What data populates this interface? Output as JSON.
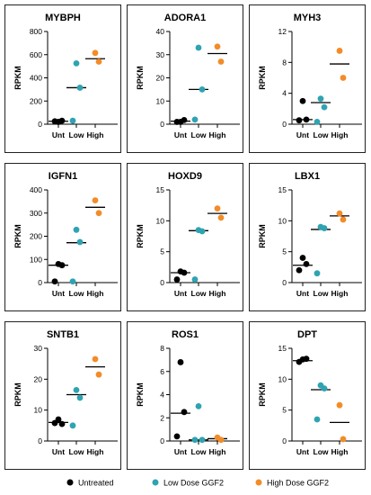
{
  "chart_data": [
    {
      "type": "scatter",
      "title": "MYBPH",
      "ylabel": "RPKM",
      "categories": [
        "Unt",
        "Low",
        "High"
      ],
      "ylim": [
        0,
        800
      ],
      "yticks": [
        0,
        200,
        400,
        600,
        800
      ],
      "series": [
        {
          "name": "Untreated",
          "color": "#000000",
          "values": [
            20,
            30,
            25
          ],
          "mean": 25
        },
        {
          "name": "Low Dose GGF2",
          "color": "#2fa3b1",
          "values": [
            525,
            315,
            30
          ],
          "mean": 315
        },
        {
          "name": "High Dose GGF2",
          "color": "#f28c28",
          "values": [
            615,
            540
          ],
          "mean": 565
        }
      ]
    },
    {
      "type": "scatter",
      "title": "ADORA1",
      "ylabel": "RPKM",
      "categories": [
        "Unt",
        "Low",
        "High"
      ],
      "ylim": [
        0,
        40
      ],
      "yticks": [
        0,
        10,
        20,
        30,
        40
      ],
      "series": [
        {
          "name": "Untreated",
          "color": "#000000",
          "values": [
            1,
            1.8,
            1
          ],
          "mean": 1.3
        },
        {
          "name": "Low Dose GGF2",
          "color": "#2fa3b1",
          "values": [
            33,
            15,
            2
          ],
          "mean": 15
        },
        {
          "name": "High Dose GGF2",
          "color": "#f28c28",
          "values": [
            33.5,
            27
          ],
          "mean": 30.5
        }
      ]
    },
    {
      "type": "scatter",
      "title": "MYH3",
      "ylabel": "RPKM",
      "categories": [
        "Unt",
        "Low",
        "High"
      ],
      "ylim": [
        0,
        12
      ],
      "yticks": [
        0,
        4,
        8,
        12
      ],
      "series": [
        {
          "name": "Untreated",
          "color": "#000000",
          "values": [
            3,
            0.6,
            0.5
          ],
          "mean": 0.6
        },
        {
          "name": "Low Dose GGF2",
          "color": "#2fa3b1",
          "values": [
            3.3,
            2.2,
            0.3
          ],
          "mean": 2.8
        },
        {
          "name": "High Dose GGF2",
          "color": "#f28c28",
          "values": [
            9.5,
            6
          ],
          "mean": 7.8
        }
      ]
    },
    {
      "type": "scatter",
      "title": "IGFN1",
      "ylabel": "RPKM",
      "categories": [
        "Unt",
        "Low",
        "High"
      ],
      "ylim": [
        0,
        400
      ],
      "yticks": [
        0,
        100,
        200,
        300,
        400
      ],
      "series": [
        {
          "name": "Untreated",
          "color": "#000000",
          "values": [
            80,
            75,
            5
          ],
          "mean": 75
        },
        {
          "name": "Low Dose GGF2",
          "color": "#2fa3b1",
          "values": [
            228,
            175,
            5
          ],
          "mean": 172
        },
        {
          "name": "High Dose GGF2",
          "color": "#f28c28",
          "values": [
            355,
            300
          ],
          "mean": 325
        }
      ]
    },
    {
      "type": "scatter",
      "title": "HOXD9",
      "ylabel": "RPKM",
      "categories": [
        "Unt",
        "Low",
        "High"
      ],
      "ylim": [
        0,
        15
      ],
      "yticks": [
        0,
        5,
        10,
        15
      ],
      "series": [
        {
          "name": "Untreated",
          "color": "#000000",
          "values": [
            1.8,
            1.6,
            0.5
          ],
          "mean": 1.6
        },
        {
          "name": "Low Dose GGF2",
          "color": "#2fa3b1",
          "values": [
            8.5,
            8.3,
            0.5
          ],
          "mean": 8.4
        },
        {
          "name": "High Dose GGF2",
          "color": "#f28c28",
          "values": [
            12,
            10.5
          ],
          "mean": 11.2
        }
      ]
    },
    {
      "type": "scatter",
      "title": "LBX1",
      "ylabel": "RPKM",
      "categories": [
        "Unt",
        "Low",
        "High"
      ],
      "ylim": [
        0,
        15
      ],
      "yticks": [
        0,
        5,
        10,
        15
      ],
      "series": [
        {
          "name": "Untreated",
          "color": "#000000",
          "values": [
            4,
            3,
            2
          ],
          "mean": 2.8
        },
        {
          "name": "Low Dose GGF2",
          "color": "#2fa3b1",
          "values": [
            9,
            8.8,
            1.5
          ],
          "mean": 8.6
        },
        {
          "name": "High Dose GGF2",
          "color": "#f28c28",
          "values": [
            11.2,
            10.2
          ],
          "mean": 10.8
        }
      ]
    },
    {
      "type": "scatter",
      "title": "SNTB1",
      "ylabel": "RPKM",
      "categories": [
        "Unt",
        "Low",
        "High"
      ],
      "ylim": [
        0,
        30
      ],
      "yticks": [
        0,
        10,
        20,
        30
      ],
      "series": [
        {
          "name": "Untreated",
          "color": "#000000",
          "values": [
            7,
            5.5,
            5.8
          ],
          "mean": 6
        },
        {
          "name": "Low Dose GGF2",
          "color": "#2fa3b1",
          "values": [
            16.5,
            14,
            5
          ],
          "mean": 15
        },
        {
          "name": "High Dose GGF2",
          "color": "#f28c28",
          "values": [
            26.5,
            21.5
          ],
          "mean": 24
        }
      ]
    },
    {
      "type": "scatter",
      "title": "ROS1",
      "ylabel": "RPKM",
      "categories": [
        "Unt",
        "Low",
        "High"
      ],
      "ylim": [
        0,
        8
      ],
      "yticks": [
        0,
        2,
        4,
        6,
        8
      ],
      "series": [
        {
          "name": "Untreated",
          "color": "#000000",
          "values": [
            6.8,
            2.5,
            0.4
          ],
          "mean": 2.4
        },
        {
          "name": "Low Dose GGF2",
          "color": "#2fa3b1",
          "values": [
            3,
            0.1,
            0.1
          ],
          "mean": 0.1
        },
        {
          "name": "High Dose GGF2",
          "color": "#f28c28",
          "values": [
            0.3,
            0.1
          ],
          "mean": 0.2
        }
      ]
    },
    {
      "type": "scatter",
      "title": "DPT",
      "ylabel": "RPKM",
      "categories": [
        "Unt",
        "Low",
        "High"
      ],
      "ylim": [
        0,
        15
      ],
      "yticks": [
        0,
        5,
        10,
        15
      ],
      "series": [
        {
          "name": "Untreated",
          "color": "#000000",
          "values": [
            13.2,
            13.3,
            12.8
          ],
          "mean": 13
        },
        {
          "name": "Low Dose GGF2",
          "color": "#2fa3b1",
          "values": [
            9,
            8.5,
            3.5
          ],
          "mean": 8.3
        },
        {
          "name": "High Dose GGF2",
          "color": "#f28c28",
          "values": [
            5.8,
            0.3
          ],
          "mean": 3
        }
      ]
    }
  ],
  "legend": [
    {
      "label": "Untreated",
      "color": "#000000"
    },
    {
      "label": "Low Dose GGF2",
      "color": "#2fa3b1"
    },
    {
      "label": "High Dose GGF2",
      "color": "#f28c28"
    }
  ]
}
